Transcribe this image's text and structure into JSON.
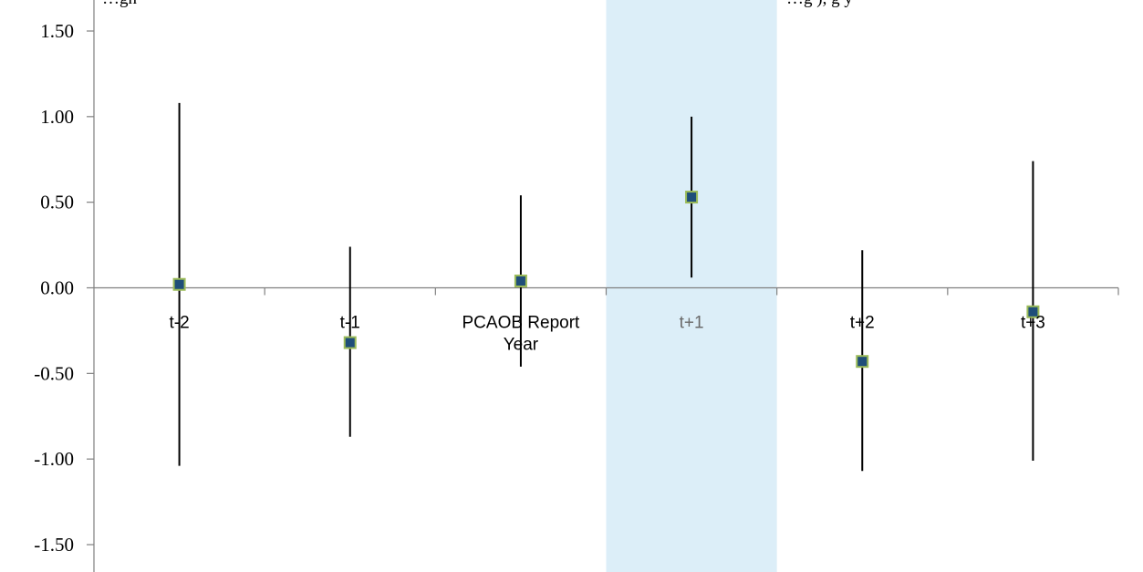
{
  "caption": {
    "left": "…gn",
    "right": "…g         ),            g   y"
  },
  "chart_data": {
    "type": "scatter",
    "title": "",
    "xlabel": "",
    "ylabel": "",
    "categories": [
      "t-2",
      "t-1",
      "PCAOB Report Year",
      "t+1",
      "t+2",
      "t+3"
    ],
    "ylim": [
      -1.5,
      1.5
    ],
    "yticks": [
      1.5,
      1.0,
      0.5,
      0.0,
      -0.5,
      -1.0,
      -1.5
    ],
    "ytick_labels": [
      "1.50",
      "1.00",
      "0.50",
      "0.00",
      "-0.50",
      "-1.00",
      "-1.50"
    ],
    "series": [
      {
        "values": [
          0.02,
          -0.32,
          0.04,
          0.53,
          -0.43,
          -0.14
        ],
        "lower": [
          -1.04,
          -0.87,
          -0.46,
          0.06,
          -1.07,
          -1.01
        ],
        "upper": [
          1.08,
          0.24,
          0.54,
          1.0,
          0.22,
          0.74
        ]
      }
    ],
    "highlight_category": "t+1",
    "marker": "square",
    "colors": {
      "marker_fill": "#1f4e79",
      "marker_edge": "#9bbb59",
      "highlight_band": "#dceef8",
      "error_bar": "#000000",
      "axis": "#808080"
    }
  }
}
